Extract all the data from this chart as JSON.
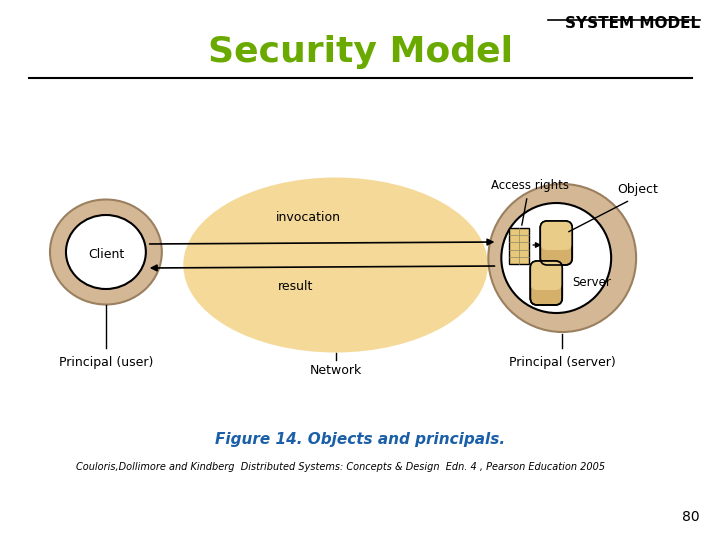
{
  "title": "Security Model",
  "header": "SYSTEM MODEL",
  "figure_caption": "Figure 14. Objects and principals.",
  "citation": "Couloris,Dollimore and Kindberg  Distributed Systems: Concepts & Design  Edn. 4 , Pearson Education 2005",
  "page_number": "80",
  "bg_color": "#ffffff",
  "title_color": "#6aaa00",
  "header_color": "#000000",
  "caption_color": "#1a5fa8",
  "network_blob_color": "#f5d999",
  "client_outer_color": "#d4b896",
  "client_inner_color": "#ffffff",
  "server_outer_color": "#d4b896",
  "server_inner_color": "#ffffff",
  "line_color": "#000000"
}
